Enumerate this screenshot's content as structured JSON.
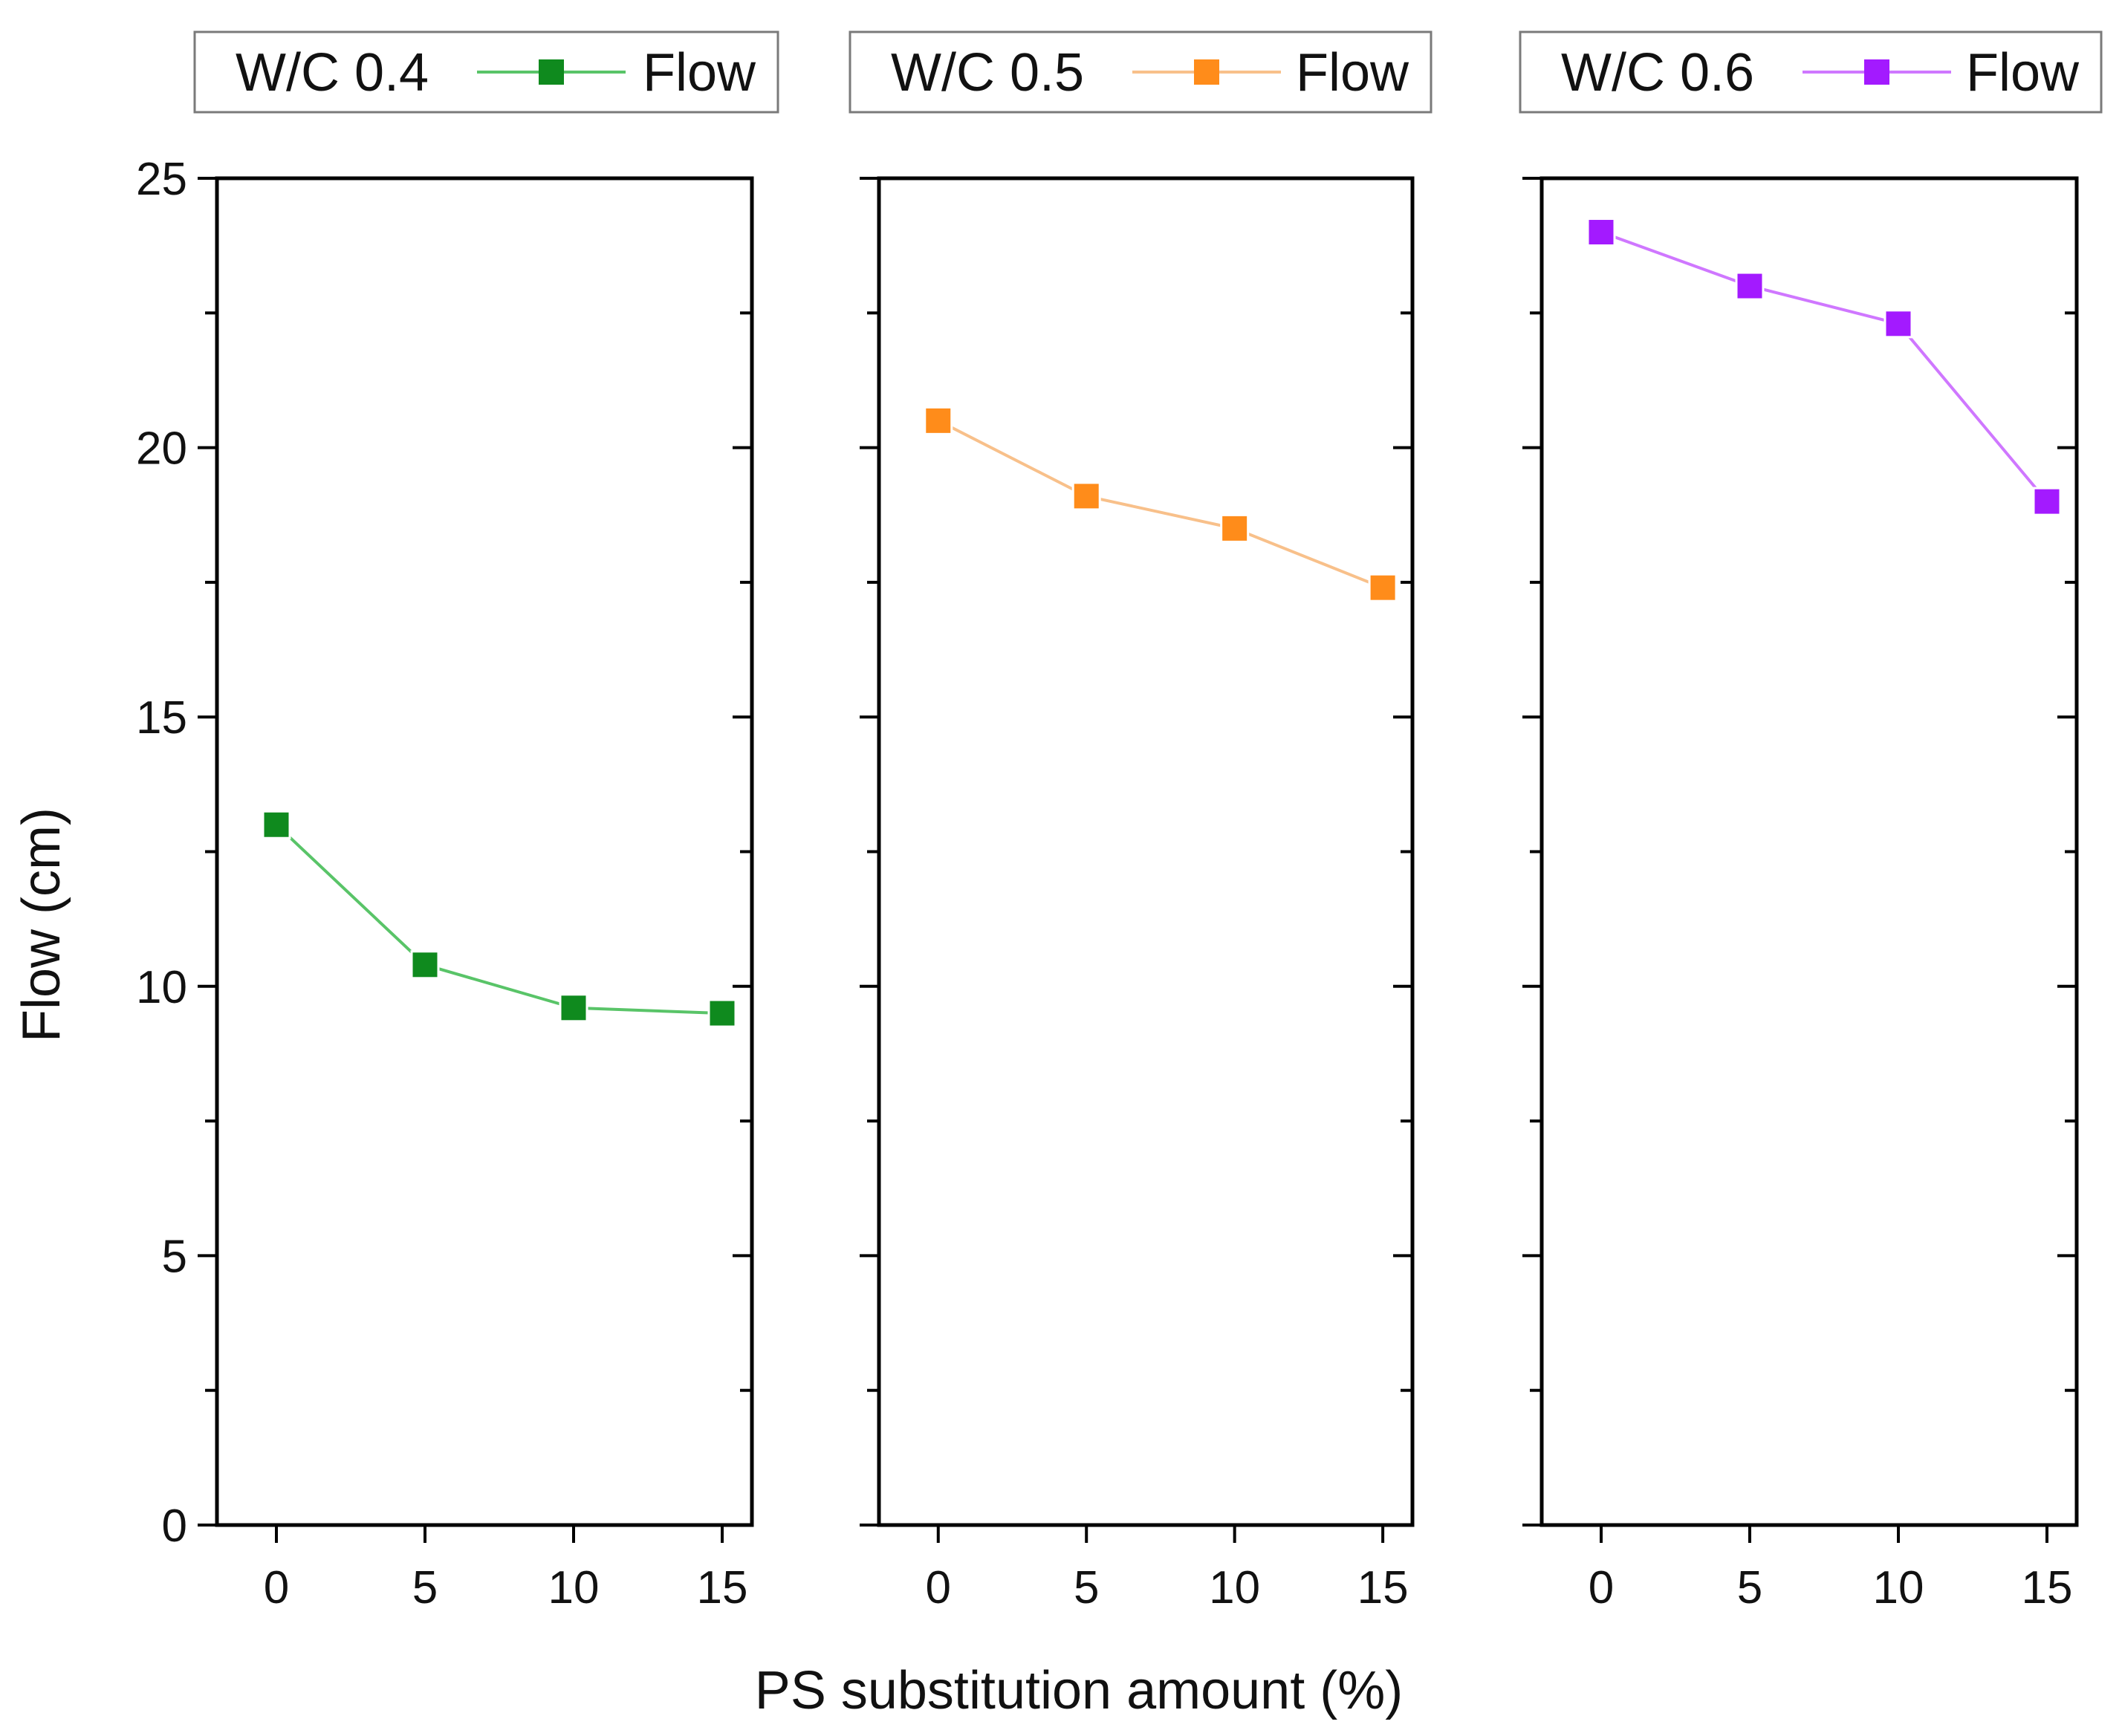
{
  "chart_data": {
    "type": "line",
    "xlabel": "PS substitution amount (%)",
    "ylabel": "Flow (cm)",
    "ylim": [
      0,
      25
    ],
    "xlim": [
      -2,
      16
    ],
    "yticks": [
      0,
      5,
      10,
      15,
      20,
      25
    ],
    "xticks": [
      0,
      5,
      10,
      15
    ],
    "grid": false,
    "panels": [
      {
        "legend_label": "W/C 0.4",
        "series_name": "Flow",
        "color": "#0f8a1e",
        "line_color": "#59c468",
        "marker": "square",
        "x": [
          0,
          5,
          10,
          15
        ],
        "values": [
          13.0,
          10.4,
          9.6,
          9.5
        ]
      },
      {
        "legend_label": "W/C 0.5",
        "series_name": "Flow",
        "color": "#ff8c1a",
        "line_color": "#f8c08a",
        "marker": "square",
        "x": [
          0,
          5,
          10,
          15
        ],
        "values": [
          20.5,
          19.1,
          18.5,
          17.4
        ]
      },
      {
        "legend_label": "W/C 0.6",
        "series_name": "Flow",
        "color": "#a31aff",
        "line_color": "#cf77ff",
        "marker": "square",
        "x": [
          0,
          5,
          10,
          15
        ],
        "values": [
          24.0,
          23.0,
          22.3,
          19.0
        ]
      }
    ]
  }
}
